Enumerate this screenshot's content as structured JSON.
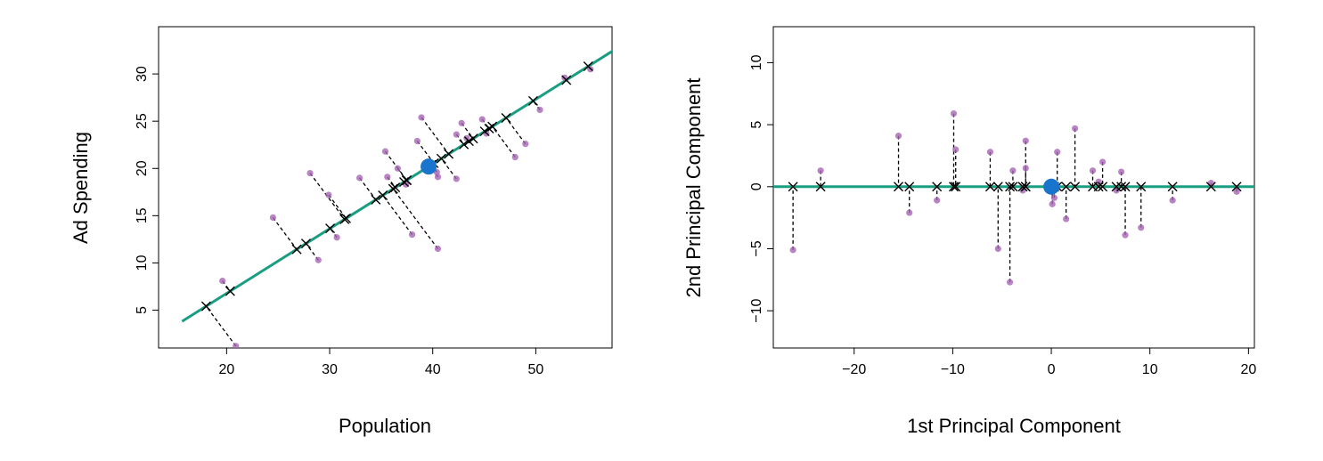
{
  "colors": {
    "line": "#1a9e82",
    "point": "#a865b5",
    "mean": "#1874cd",
    "projection": "#000000"
  },
  "chart_data": [
    {
      "type": "scatter",
      "title": "",
      "xlabel": "Population",
      "ylabel": "Ad Spending",
      "xlim": [
        13.4,
        57.4
      ],
      "ylim": [
        1.0,
        35.0
      ],
      "xticks": [
        20,
        30,
        40,
        50
      ],
      "yticks": [
        5,
        10,
        15,
        20,
        25,
        30
      ],
      "mean": [
        39.6,
        20.2
      ],
      "first_pc_direction": [
        0.825,
        0.565
      ],
      "pc_line_range": [
        -29,
        23
      ],
      "points": [
        [
          20.9,
          1.2
        ],
        [
          19.6,
          8.1
        ],
        [
          24.5,
          14.8
        ],
        [
          28.9,
          10.3
        ],
        [
          30.7,
          12.7
        ],
        [
          28.1,
          19.5
        ],
        [
          29.9,
          17.2
        ],
        [
          32.9,
          19.0
        ],
        [
          38.0,
          13.0
        ],
        [
          35.6,
          19.1
        ],
        [
          40.5,
          11.5
        ],
        [
          35.4,
          21.8
        ],
        [
          36.6,
          20.0
        ],
        [
          37.4,
          18.3
        ],
        [
          38.5,
          22.9
        ],
        [
          40.4,
          19.6
        ],
        [
          40.5,
          19.1
        ],
        [
          42.3,
          18.9
        ],
        [
          38.9,
          25.4
        ],
        [
          42.3,
          23.6
        ],
        [
          42.8,
          24.8
        ],
        [
          43.3,
          23.2
        ],
        [
          45.2,
          23.7
        ],
        [
          44.8,
          25.2
        ],
        [
          48.0,
          21.2
        ],
        [
          49.0,
          22.6
        ],
        [
          50.4,
          26.2
        ],
        [
          52.8,
          29.6
        ],
        [
          55.3,
          30.5
        ]
      ]
    },
    {
      "type": "scatter",
      "title": "",
      "xlabel": "1st Principal Component",
      "ylabel": "2nd Principal Component",
      "xlim": [
        -28.2,
        20.6
      ],
      "ylim": [
        -13.0,
        12.9
      ],
      "xticks": [
        -20,
        -10,
        0,
        10,
        20
      ],
      "yticks": [
        -10,
        -5,
        0,
        5,
        10
      ],
      "mean": [
        0,
        0
      ],
      "points": [
        [
          -26.2,
          -5.1
        ],
        [
          -23.4,
          1.3
        ],
        [
          -15.5,
          4.1
        ],
        [
          -14.4,
          -2.1
        ],
        [
          -11.6,
          -1.1
        ],
        [
          -9.9,
          5.9
        ],
        [
          -9.7,
          3.0
        ],
        [
          -6.2,
          2.8
        ],
        [
          -5.4,
          -5.0
        ],
        [
          -3.9,
          1.3
        ],
        [
          -4.2,
          -7.7
        ],
        [
          -2.6,
          3.7
        ],
        [
          -2.6,
          1.5
        ],
        [
          -2.9,
          -0.3
        ],
        [
          0.6,
          2.8
        ],
        [
          0.3,
          -0.9
        ],
        [
          0.1,
          -1.4
        ],
        [
          1.5,
          -2.6
        ],
        [
          2.4,
          4.7
        ],
        [
          4.2,
          1.3
        ],
        [
          5.2,
          2.0
        ],
        [
          4.8,
          0.4
        ],
        [
          6.6,
          -0.3
        ],
        [
          7.1,
          1.2
        ],
        [
          7.5,
          -3.9
        ],
        [
          9.1,
          -3.3
        ],
        [
          12.3,
          -1.1
        ],
        [
          16.2,
          0.3
        ],
        [
          18.8,
          -0.4
        ]
      ]
    }
  ]
}
